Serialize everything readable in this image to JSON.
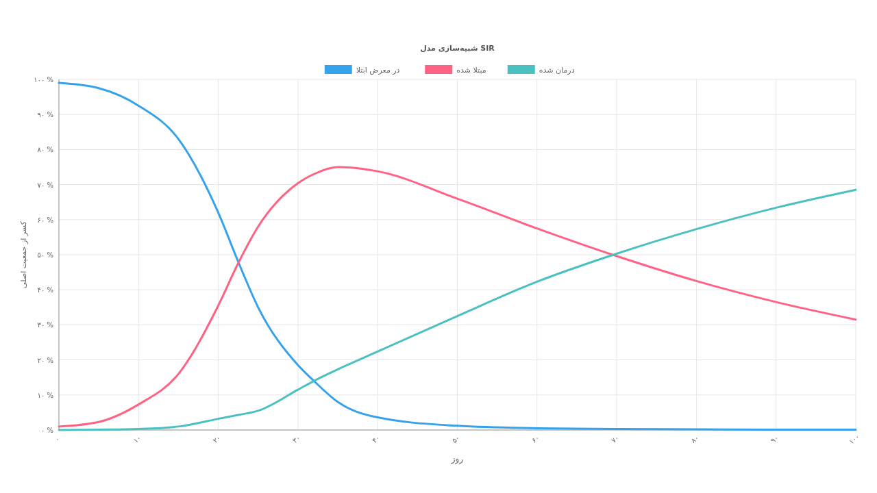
{
  "chart_data": {
    "type": "line",
    "title": "شبیه‌سازی مدل SIR",
    "xlabel": "روز",
    "ylabel": "کسر از جمعیت اصلی",
    "x": [
      0,
      5,
      10,
      15,
      20,
      22.5,
      25,
      30,
      32,
      35,
      40,
      50,
      60,
      70,
      80,
      90,
      100
    ],
    "series": [
      {
        "name": "در معرض ابتلا",
        "color": "#36a2eb",
        "values": [
          99,
          97.5,
          92.5,
          83,
          62,
          48,
          35,
          18.5,
          14,
          8,
          3.6,
          1.2,
          0.5,
          0.3,
          0.2,
          0.1,
          0.1
        ]
      },
      {
        "name": "مبتلا شده",
        "color": "#ff6384",
        "values": [
          1,
          2.3,
          7.3,
          16,
          35.5,
          47.6,
          58,
          70.4,
          73,
          75,
          73.8,
          66,
          57.5,
          49.6,
          42.5,
          36.5,
          31.5
        ]
      },
      {
        "name": "درمان شده",
        "color": "#4bc0c0",
        "values": [
          0,
          0.1,
          0.3,
          1,
          3.2,
          4.3,
          5.5,
          11.5,
          14,
          17.3,
          22.4,
          32.5,
          42.3,
          50.3,
          57.3,
          63.4,
          68.5
        ]
      }
    ],
    "xlim": [
      0,
      100
    ],
    "ylim": [
      0,
      100
    ],
    "xticks": [
      {
        "value": 0,
        "label": "۰"
      },
      {
        "value": 10,
        "label": "۱۰"
      },
      {
        "value": 20,
        "label": "۲۰"
      },
      {
        "value": 30,
        "label": "۳۰"
      },
      {
        "value": 40,
        "label": "۴۰"
      },
      {
        "value": 50,
        "label": "۵۰"
      },
      {
        "value": 60,
        "label": "۶۰"
      },
      {
        "value": 70,
        "label": "۷۰"
      },
      {
        "value": 80,
        "label": "۸۰"
      },
      {
        "value": 90,
        "label": "۹۰"
      },
      {
        "value": 100,
        "label": "۱۰۰"
      }
    ],
    "yticks": [
      {
        "value": 0,
        "label": "۰ %"
      },
      {
        "value": 10,
        "label": "۱۰ %"
      },
      {
        "value": 20,
        "label": "۲۰ %"
      },
      {
        "value": 30,
        "label": "۳۰ %"
      },
      {
        "value": 40,
        "label": "۴۰ %"
      },
      {
        "value": 50,
        "label": "۵۰ %"
      },
      {
        "value": 60,
        "label": "۶۰ %"
      },
      {
        "value": 70,
        "label": "۷۰ %"
      },
      {
        "value": 80,
        "label": "۸۰ %"
      },
      {
        "value": 90,
        "label": "۹۰ %"
      },
      {
        "value": 100,
        "label": "۱۰۰ %"
      }
    ],
    "grid": true,
    "legend": "top",
    "marker": "none",
    "line_style": "solid"
  }
}
